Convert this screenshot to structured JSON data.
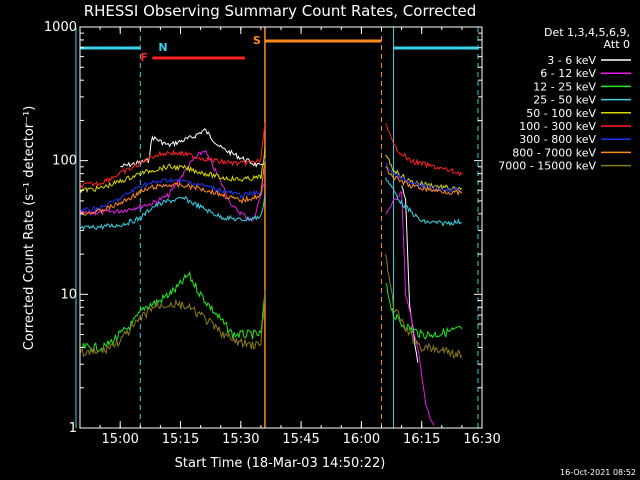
{
  "chart_data": {
    "type": "line",
    "title": "RHESSI Observing Summary Count Rates, Corrected",
    "xlabel": "Start Time (18-Mar-03 14:50:22)",
    "ylabel": "Corrected Count Rate (s⁻¹ detector⁻¹)",
    "x_unit": "minutes",
    "xlim": [
      "14:50",
      "16:30"
    ],
    "ylim": [
      1,
      1000
    ],
    "yscale": "log",
    "x_ticks": [
      "15:00",
      "15:15",
      "15:30",
      "15:45",
      "16:00",
      "16:15",
      "16:30"
    ],
    "y_ticks": [
      "1",
      "10",
      "100",
      "1000"
    ],
    "legend_header": [
      "Det 1,3,4,5,6,9,",
      "Att 0"
    ],
    "legend_position": "right",
    "footer_date": "16-Oct-2021 08:52",
    "night_intervals": [
      [
        "14:49",
        "15:05"
      ],
      [
        "16:08",
        "16:29"
      ]
    ],
    "saa_interval": [
      "15:36",
      "16:05"
    ],
    "flare_interval": [
      "15:08",
      "15:31"
    ],
    "markers": [
      {
        "label": "N",
        "time": "15:08",
        "color": "#3ad3e8"
      },
      {
        "label": "S",
        "time": "15:36",
        "color": "#ff8a1e"
      },
      {
        "label": "F",
        "time": "15:08",
        "color": "#ff2020"
      }
    ],
    "series": [
      {
        "name": "3 - 6 keV",
        "color": "#ffffff",
        "points": [
          [
            "15:00",
            90
          ],
          [
            "15:07",
            100
          ],
          [
            "15:08",
            150
          ],
          [
            "15:12",
            130
          ],
          [
            "15:18",
            150
          ],
          [
            "15:21",
            170
          ],
          [
            "15:25",
            125
          ],
          [
            "15:30",
            105
          ],
          [
            "15:35",
            90
          ],
          [
            "15:36",
            100
          ],
          [
            "16:10",
            65
          ],
          [
            "16:11",
            50
          ],
          [
            "16:12",
            8
          ],
          [
            "16:13",
            5
          ],
          [
            "16:14",
            3
          ]
        ]
      },
      {
        "name": "6 - 12 keV",
        "color": "#e818e8",
        "points": [
          [
            "14:50",
            40
          ],
          [
            "15:00",
            42
          ],
          [
            "15:08",
            48
          ],
          [
            "15:12",
            55
          ],
          [
            "15:18",
            100
          ],
          [
            "15:21",
            120
          ],
          [
            "15:24",
            80
          ],
          [
            "15:28",
            45
          ],
          [
            "15:33",
            35
          ],
          [
            "15:36",
            70
          ],
          [
            "16:06",
            40
          ],
          [
            "16:10",
            60
          ],
          [
            "16:11",
            10
          ],
          [
            "16:14",
            4
          ],
          [
            "16:16",
            1.5
          ],
          [
            "16:18",
            1
          ]
        ]
      },
      {
        "name": "12 - 25 keV",
        "color": "#22e822",
        "points": [
          [
            "14:50",
            4
          ],
          [
            "14:56",
            4
          ],
          [
            "15:00",
            5
          ],
          [
            "15:03",
            6
          ],
          [
            "15:06",
            8
          ],
          [
            "15:10",
            9
          ],
          [
            "15:14",
            11
          ],
          [
            "15:17",
            14
          ],
          [
            "15:20",
            10
          ],
          [
            "15:24",
            7
          ],
          [
            "15:28",
            5
          ],
          [
            "15:32",
            5
          ],
          [
            "15:35",
            5
          ],
          [
            "15:36",
            10
          ],
          [
            "16:06",
            12
          ],
          [
            "16:08",
            7
          ],
          [
            "16:10",
            6
          ],
          [
            "16:15",
            5
          ],
          [
            "16:18",
            5
          ],
          [
            "16:25",
            5.5
          ]
        ]
      },
      {
        "name": "25 - 50 keV",
        "color": "#3ad3e8",
        "points": [
          [
            "14:50",
            31
          ],
          [
            "14:55",
            32
          ],
          [
            "15:00",
            33
          ],
          [
            "15:05",
            37
          ],
          [
            "15:08",
            45
          ],
          [
            "15:12",
            50
          ],
          [
            "15:16",
            52
          ],
          [
            "15:20",
            45
          ],
          [
            "15:25",
            38
          ],
          [
            "15:30",
            36
          ],
          [
            "15:35",
            38
          ],
          [
            "15:36",
            55
          ],
          [
            "16:06",
            75
          ],
          [
            "16:10",
            48
          ],
          [
            "16:15",
            35
          ],
          [
            "16:20",
            34
          ],
          [
            "16:25",
            35
          ]
        ]
      },
      {
        "name": "50 - 100 keV",
        "color": "#d8d800",
        "points": [
          [
            "14:50",
            60
          ],
          [
            "14:55",
            62
          ],
          [
            "15:00",
            70
          ],
          [
            "15:05",
            80
          ],
          [
            "15:08",
            85
          ],
          [
            "15:12",
            90
          ],
          [
            "15:16",
            88
          ],
          [
            "15:20",
            82
          ],
          [
            "15:25",
            75
          ],
          [
            "15:30",
            72
          ],
          [
            "15:35",
            75
          ],
          [
            "15:36",
            120
          ],
          [
            "16:06",
            110
          ],
          [
            "16:08",
            85
          ],
          [
            "16:12",
            70
          ],
          [
            "16:18",
            65
          ],
          [
            "16:25",
            60
          ]
        ]
      },
      {
        "name": "100 - 300 keV",
        "color": "#ff2020",
        "points": [
          [
            "14:50",
            65
          ],
          [
            "14:55",
            68
          ],
          [
            "15:00",
            80
          ],
          [
            "15:05",
            95
          ],
          [
            "15:08",
            108
          ],
          [
            "15:12",
            115
          ],
          [
            "15:16",
            112
          ],
          [
            "15:20",
            105
          ],
          [
            "15:25",
            98
          ],
          [
            "15:30",
            95
          ],
          [
            "15:35",
            100
          ],
          [
            "15:36",
            200
          ],
          [
            "16:06",
            190
          ],
          [
            "16:08",
            130
          ],
          [
            "16:12",
            100
          ],
          [
            "16:18",
            90
          ],
          [
            "16:25",
            80
          ]
        ]
      },
      {
        "name": "300 - 800 keV",
        "color": "#2233ee",
        "points": [
          [
            "14:50",
            42
          ],
          [
            "14:55",
            44
          ],
          [
            "15:00",
            52
          ],
          [
            "15:05",
            65
          ],
          [
            "15:08",
            68
          ],
          [
            "15:12",
            72
          ],
          [
            "15:16",
            70
          ],
          [
            "15:20",
            66
          ],
          [
            "15:25",
            60
          ],
          [
            "15:30",
            55
          ],
          [
            "15:35",
            58
          ],
          [
            "15:36",
            100
          ],
          [
            "16:06",
            95
          ],
          [
            "16:08",
            80
          ],
          [
            "16:12",
            68
          ],
          [
            "16:18",
            62
          ],
          [
            "16:25",
            60
          ]
        ]
      },
      {
        "name": "800 - 7000 keV",
        "color": "#ff8a1e",
        "points": [
          [
            "14:50",
            40
          ],
          [
            "14:55",
            42
          ],
          [
            "15:00",
            48
          ],
          [
            "15:05",
            58
          ],
          [
            "15:08",
            63
          ],
          [
            "15:12",
            66
          ],
          [
            "15:16",
            65
          ],
          [
            "15:20",
            62
          ],
          [
            "15:25",
            56
          ],
          [
            "15:30",
            50
          ],
          [
            "15:35",
            55
          ],
          [
            "15:36",
            100
          ],
          [
            "16:06",
            90
          ],
          [
            "16:08",
            75
          ],
          [
            "16:12",
            65
          ],
          [
            "16:18",
            60
          ],
          [
            "16:25",
            57
          ]
        ]
      },
      {
        "name": "7000 - 15000 keV",
        "color": "#8c7a1a",
        "points": [
          [
            "14:50",
            3.6
          ],
          [
            "14:55",
            3.7
          ],
          [
            "15:00",
            4.5
          ],
          [
            "15:05",
            6.5
          ],
          [
            "15:08",
            8
          ],
          [
            "15:12",
            8.5
          ],
          [
            "15:16",
            8.2
          ],
          [
            "15:20",
            7
          ],
          [
            "15:24",
            5.5
          ],
          [
            "15:28",
            4.5
          ],
          [
            "15:32",
            4.2
          ],
          [
            "15:35",
            4.2
          ],
          [
            "15:36",
            10
          ],
          [
            "16:06",
            20
          ],
          [
            "16:08",
            8
          ],
          [
            "16:12",
            5
          ],
          [
            "16:15",
            4
          ],
          [
            "16:20",
            3.8
          ],
          [
            "16:25",
            3.5
          ]
        ]
      }
    ]
  }
}
